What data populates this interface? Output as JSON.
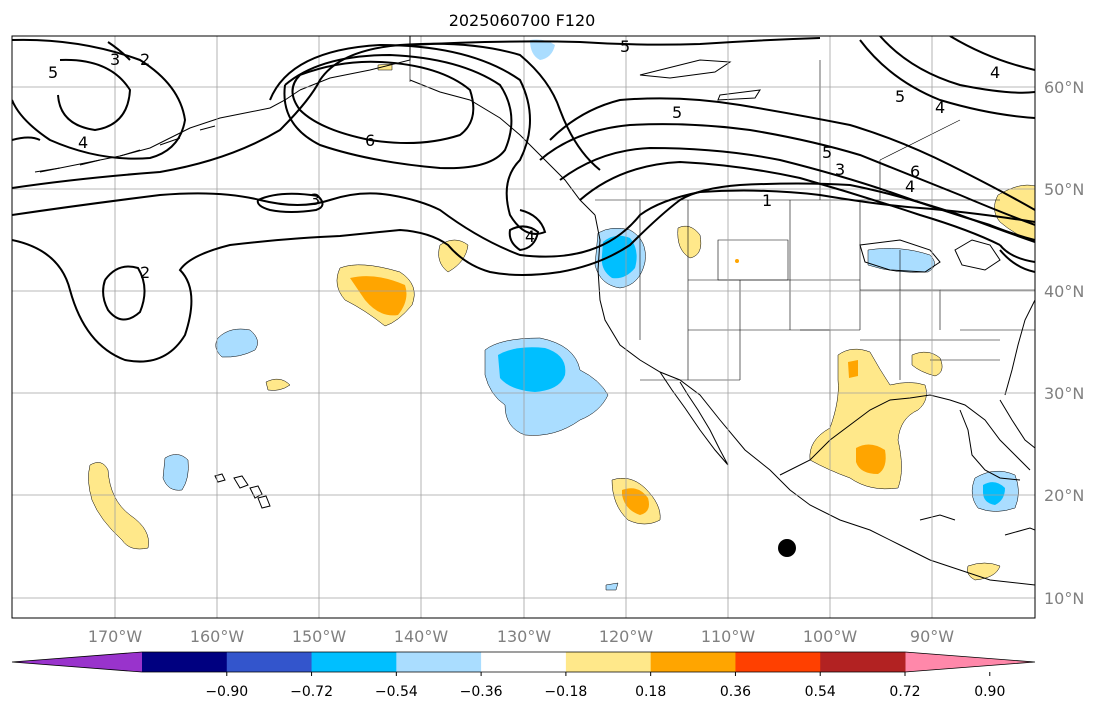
{
  "title": "2025060700 F120",
  "lat_labels": [
    "60°N",
    "50°N",
    "40°N",
    "30°N",
    "20°N",
    "10°N"
  ],
  "lon_labels": [
    "170°W",
    "160°W",
    "150°W",
    "140°W",
    "130°W",
    "120°W",
    "110°W",
    "100°W",
    "90°W"
  ],
  "colorbar": {
    "colors": [
      "#9933cc",
      "#000080",
      "#3355cc",
      "#00bfff",
      "#aaddff",
      "#ffffff",
      "#ffe88a",
      "#ffa500",
      "#ff4000",
      "#b22222",
      "#ff88aa"
    ],
    "tick_labels": [
      "−0.90",
      "−0.72",
      "−0.54",
      "−0.36",
      "−0.18",
      "0.18",
      "0.36",
      "0.54",
      "0.72",
      "0.90"
    ]
  },
  "contour_labels": [
    "5",
    "2",
    "3",
    "4",
    "5",
    "6",
    "5",
    "3",
    "4",
    "6",
    "1",
    "5",
    "4",
    "3",
    "2",
    "5",
    "4"
  ],
  "colors": {
    "ocean": "#ffffff",
    "coast": "#000000",
    "grid": "#a0a0a0",
    "contour": "#000000"
  }
}
